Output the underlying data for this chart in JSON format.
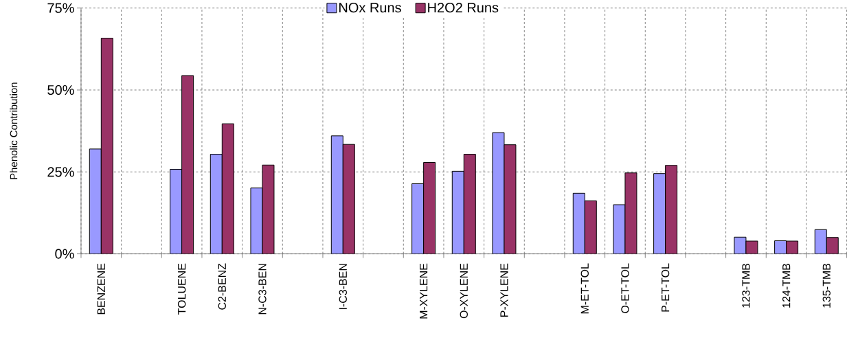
{
  "chart_data": {
    "type": "bar",
    "categories": [
      "BENZENE",
      null,
      "TOLUENE",
      "C2-BENZ",
      "N-C3-BEN",
      null,
      "I-C3-BEN",
      null,
      "M-XYLENE",
      "O-XYLENE",
      "P-XYLENE",
      null,
      "M-ET-TOL",
      "O-ET-TOL",
      "P-ET-TOL",
      null,
      "123-TMB",
      "124-TMB",
      "135-TMB"
    ],
    "series": [
      {
        "name": "NOx Runs",
        "color": "#9999ff",
        "values": [
          32.0,
          null,
          25.8,
          30.4,
          20.1,
          null,
          36.0,
          null,
          21.4,
          25.2,
          37.0,
          null,
          18.5,
          15.0,
          24.5,
          null,
          5.1,
          4.0,
          7.4
        ]
      },
      {
        "name": "H2O2 Runs",
        "color": "#993366",
        "values": [
          65.8,
          null,
          54.4,
          39.7,
          27.1,
          null,
          33.4,
          null,
          27.9,
          30.4,
          33.3,
          null,
          16.2,
          24.7,
          27.0,
          null,
          3.9,
          3.9,
          5.0
        ]
      }
    ],
    "ylabel": "Phenolic Contribution",
    "ylim": [
      0,
      75
    ],
    "yticks": [
      {
        "value": 0,
        "label": "0%"
      },
      {
        "value": 25,
        "label": "25%"
      },
      {
        "value": 50,
        "label": "50%"
      },
      {
        "value": 75,
        "label": "75%"
      }
    ],
    "grid": true,
    "legend": "top"
  }
}
